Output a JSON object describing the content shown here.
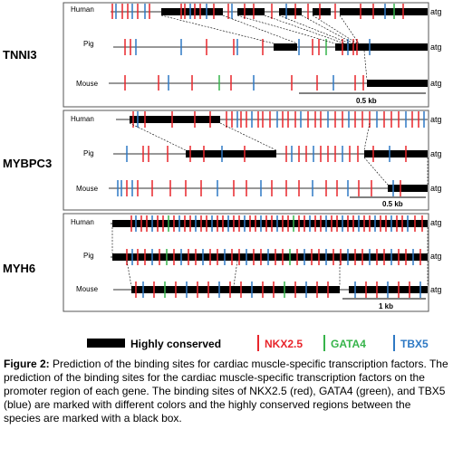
{
  "colors": {
    "nkx": "#e8252b",
    "gata": "#36b44a",
    "tbx": "#2e79c4",
    "conserved": "#000000",
    "line": "#777777"
  },
  "panels": [
    {
      "gene": "TNNI3",
      "species": [
        {
          "name": "Human",
          "atg": "atg"
        },
        {
          "name": "Pig",
          "atg": "atg"
        },
        {
          "name": "Mouse",
          "atg": "atg"
        }
      ],
      "scale_label": "0.5 kb"
    },
    {
      "gene": "MYBPC3",
      "species": [
        {
          "name": "Human",
          "atg": "atg"
        },
        {
          "name": "Pig",
          "atg": "atg"
        },
        {
          "name": "Mouse",
          "atg": "atg"
        }
      ],
      "scale_label": "0.5 kb"
    },
    {
      "gene": "MYH6",
      "species": [
        {
          "name": "Human",
          "atg": "atg"
        },
        {
          "name": "Pig",
          "atg": "atg"
        },
        {
          "name": "Mouse",
          "atg": "atg"
        }
      ],
      "scale_label": "1 kb"
    }
  ],
  "legend": {
    "conserved": "Highly conserved",
    "nkx": "NKX2.5",
    "gata": "GATA4",
    "tbx": "TBX5"
  },
  "caption": {
    "label": "Figure 2:",
    "text": " Prediction of the binding sites for cardiac muscle-specific transcription factors. The prediction of the binding sites for the cardiac muscle-specific transcription factors on the promoter region of each gene. The binding sites of NKX2.5 (red), GATA4 (green), and TBX5 (blue) are marked with different colors and the highly conserved regions between the species are marked with a black box."
  }
}
